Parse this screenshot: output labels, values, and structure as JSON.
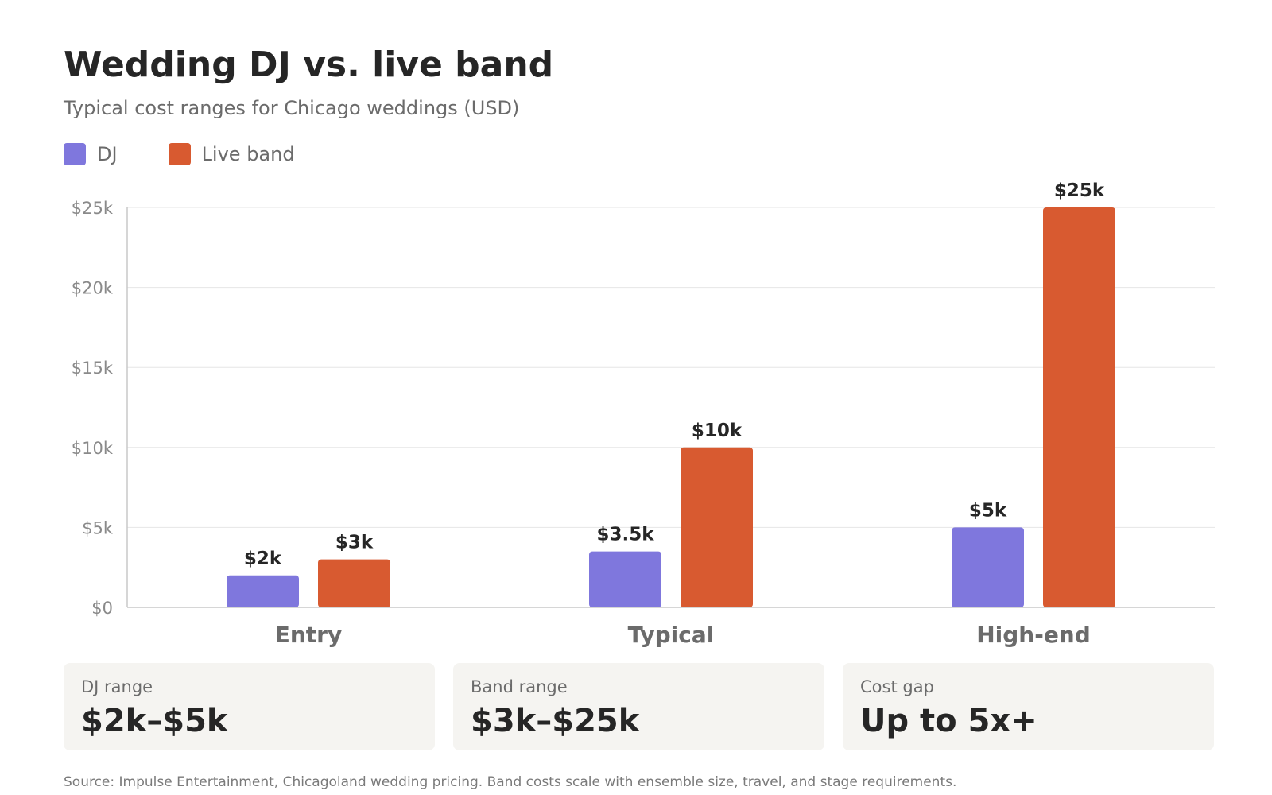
{
  "header": {
    "title": "Wedding DJ vs. live band",
    "subtitle": "Typical cost ranges for Chicago weddings (USD)"
  },
  "legend": [
    {
      "label": "DJ",
      "color": "#7f77dd"
    },
    {
      "label": "Live band",
      "color": "#d85a30"
    }
  ],
  "chart_data": {
    "type": "bar",
    "title": "Wedding DJ vs. live band",
    "subtitle": "Typical cost ranges for Chicago weddings (USD)",
    "categories": [
      "Entry",
      "Typical",
      "High-end"
    ],
    "series": [
      {
        "name": "DJ",
        "color": "#7f77dd",
        "values": [
          2000,
          3500,
          5000
        ],
        "labels": [
          "$2k",
          "$3.5k",
          "$5k"
        ]
      },
      {
        "name": "Live band",
        "color": "#d85a30",
        "values": [
          3000,
          10000,
          25000
        ],
        "labels": [
          "$3k",
          "$10k",
          "$25k"
        ]
      }
    ],
    "ylim": [
      0,
      25000
    ],
    "yticks": [
      0,
      5000,
      10000,
      15000,
      20000,
      25000
    ],
    "ytick_labels": [
      "$0",
      "$5k",
      "$10k",
      "$15k",
      "$20k",
      "$25k"
    ],
    "grid": true,
    "legend_position": "top-left"
  },
  "cards": [
    {
      "label": "DJ range",
      "value": "$2k–$5k"
    },
    {
      "label": "Band range",
      "value": "$3k–$25k"
    },
    {
      "label": "Cost gap",
      "value": "Up to 5x+"
    }
  ],
  "footer": {
    "source": "Source: Impulse Entertainment, Chicagoland wedding pricing. Band costs scale with ensemble size, travel, and stage requirements."
  }
}
